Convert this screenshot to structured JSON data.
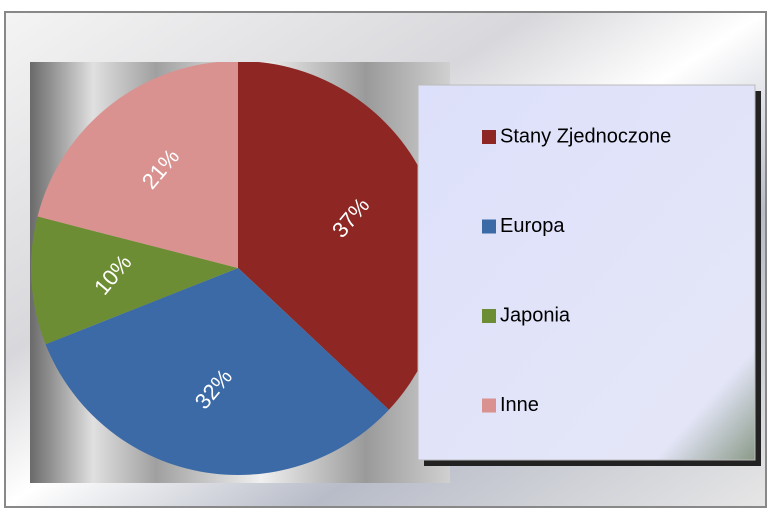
{
  "chart_data": {
    "type": "pie",
    "categories": [
      "Stany Zjednoczone",
      "Europa",
      "Japonia",
      "Inne"
    ],
    "values": [
      37,
      32,
      10,
      21
    ],
    "value_labels": [
      "37%",
      "32%",
      "10%",
      "21%"
    ],
    "colors": [
      "#8e2623",
      "#3b6aa6",
      "#6c8d33",
      "#d9928f"
    ],
    "legend": "right"
  }
}
